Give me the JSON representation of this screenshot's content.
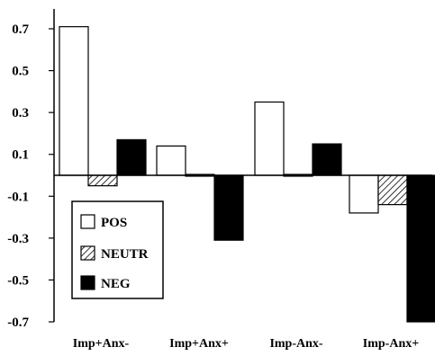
{
  "chart_data": {
    "type": "bar",
    "title": "",
    "xlabel": "",
    "ylabel": "",
    "ylim": [
      -0.7,
      0.8
    ],
    "yticks": [
      0.7,
      0.5,
      0.3,
      0.1,
      -0.1,
      -0.3,
      -0.5,
      -0.7
    ],
    "ytick_labels": [
      "0.7",
      "0.5",
      "0.3",
      "0.1",
      "-0.1",
      "-0.3",
      "-0.5",
      "-0.7"
    ],
    "categories": [
      "Imp+Anx-",
      "Imp+Anx+",
      "Imp-Anx-",
      "Imp-Anx+"
    ],
    "series": [
      {
        "name": "POS",
        "style": "white",
        "values": [
          0.71,
          0.14,
          0.35,
          -0.18
        ]
      },
      {
        "name": "NEUTR",
        "style": "hatched",
        "values": [
          -0.05,
          0.0,
          0.005,
          -0.14
        ]
      },
      {
        "name": "NEG",
        "style": "black",
        "values": [
          0.17,
          -0.31,
          0.15,
          -0.7
        ]
      }
    ],
    "grid": false,
    "legend": "bottom-left",
    "colors": {
      "bar_outline": "#000000",
      "pos_fill": "#ffffff",
      "neg_fill": "#000000",
      "axis": "#000000"
    }
  }
}
